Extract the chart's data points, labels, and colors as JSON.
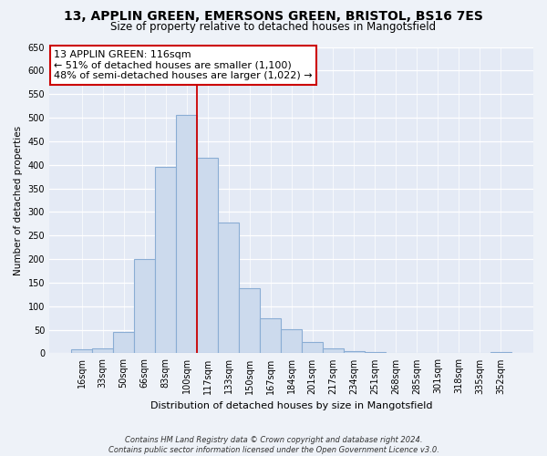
{
  "title": "13, APPLIN GREEN, EMERSONS GREEN, BRISTOL, BS16 7ES",
  "subtitle": "Size of property relative to detached houses in Mangotsfield",
  "xlabel": "Distribution of detached houses by size in Mangotsfield",
  "ylabel": "Number of detached properties",
  "bar_labels": [
    "16sqm",
    "33sqm",
    "50sqm",
    "66sqm",
    "83sqm",
    "100sqm",
    "117sqm",
    "133sqm",
    "150sqm",
    "167sqm",
    "184sqm",
    "201sqm",
    "217sqm",
    "234sqm",
    "251sqm",
    "268sqm",
    "285sqm",
    "301sqm",
    "318sqm",
    "335sqm",
    "352sqm"
  ],
  "bar_values": [
    8,
    10,
    45,
    200,
    395,
    505,
    415,
    278,
    138,
    75,
    52,
    24,
    10,
    5,
    2,
    1,
    1,
    1,
    1,
    1,
    3
  ],
  "bar_color": "#ccdaed",
  "bar_edge_color": "#8aadd4",
  "property_line_x": 5.5,
  "property_line_color": "#cc0000",
  "annotation_line1": "13 APPLIN GREEN: 116sqm",
  "annotation_line2": "← 51% of detached houses are smaller (1,100)",
  "annotation_line3": "48% of semi-detached houses are larger (1,022) →",
  "annotation_box_color": "#ffffff",
  "annotation_box_edge": "#cc0000",
  "ylim": [
    0,
    650
  ],
  "yticks": [
    0,
    50,
    100,
    150,
    200,
    250,
    300,
    350,
    400,
    450,
    500,
    550,
    600,
    650
  ],
  "footer_line1": "Contains HM Land Registry data © Crown copyright and database right 2024.",
  "footer_line2": "Contains public sector information licensed under the Open Government Licence v3.0.",
  "bg_color": "#eef2f8",
  "plot_bg_color": "#e4eaf5",
  "title_fontsize": 10,
  "subtitle_fontsize": 8.5
}
